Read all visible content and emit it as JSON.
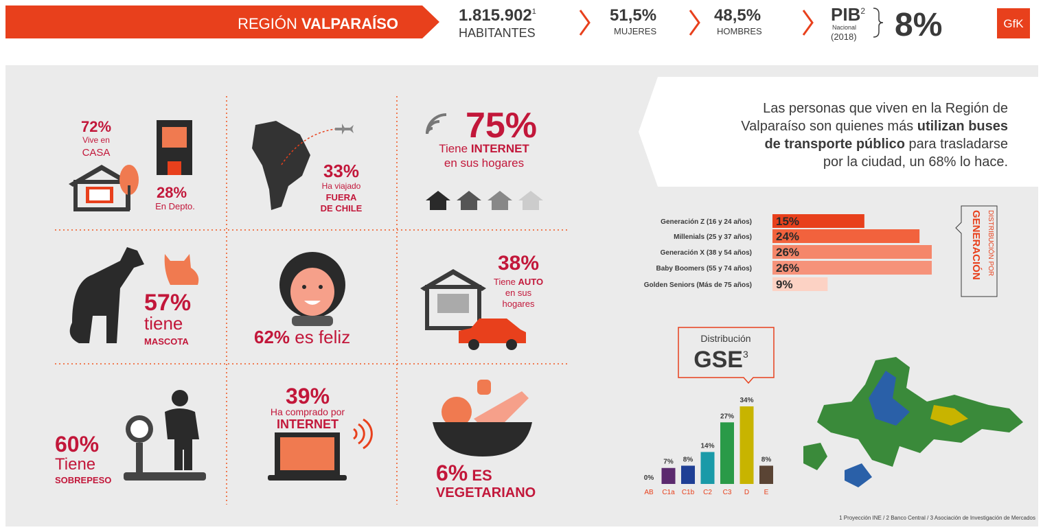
{
  "header": {
    "region_prefix": "REGIÓN ",
    "region_name": "VALPARAÍSO",
    "population": {
      "value": "1.815.902",
      "note": "1",
      "label": "HABITANTES"
    },
    "women": {
      "value": "51,5%",
      "label": "MUJERES"
    },
    "men": {
      "value": "48,5%",
      "label": "HOMBRES"
    },
    "gdp": {
      "label": "PIB",
      "note": "2",
      "sub1": "Nacional",
      "sub2": "(2018)",
      "value": "8%"
    },
    "logo": "GfK"
  },
  "cells": [
    {
      "pct": "72%",
      "line1": "Vive en",
      "line2": "CASA",
      "pct2": "28%",
      "line3": "En Depto."
    },
    {
      "pct": "33%",
      "line1": "Ha viajado",
      "line2": "FUERA",
      "line3": "DE CHILE"
    },
    {
      "pct": "75%",
      "line1a": "Tiene ",
      "line1b": "INTERNET",
      "line2": "en sus hogares"
    },
    {
      "pct": "57%",
      "line1": "tiene",
      "line2": "MASCOTA"
    },
    {
      "pct": "62%",
      "line1": " es feliz"
    },
    {
      "pct": "38%",
      "line1a": "Tiene ",
      "line1b": "AUTO",
      "line2": "en sus",
      "line3": "hogares"
    },
    {
      "pct": "60%",
      "line1": "Tiene",
      "line2": "SOBREPESO"
    },
    {
      "pct": "39%",
      "line1": "Ha comprado por",
      "line2": "INTERNET"
    },
    {
      "pct": "6%",
      "line1": " ES",
      "line2": "VEGETARIANO"
    }
  ],
  "quote": {
    "parts": [
      "Las personas que viven en la Región de",
      "Valparaíso son quienes más ",
      "utilizan buses",
      "de transporte público",
      " para trasladarse",
      "por la ciudad, un 68% lo hace."
    ]
  },
  "chart_data": [
    {
      "type": "bar",
      "orientation": "horizontal",
      "title": "DISTRIBUCIÓN POR",
      "subtitle": "GENERACIÓN",
      "categories": [
        "Generación Z (16 y 24 años)",
        "Millenials (25 y 37 años)",
        "Generación X (38 y 54 años)",
        "Baby Boomers (55 y 74 años)",
        "Golden Seniors (Más de 75 años)"
      ],
      "values": [
        15,
        24,
        26,
        26,
        9
      ],
      "value_labels": [
        "15%",
        "24%",
        "26%",
        "26%",
        "9%"
      ],
      "colors": [
        "#e8401c",
        "#f2623d",
        "#f5866a",
        "#f6927a",
        "#fcd2c4"
      ]
    },
    {
      "type": "bar",
      "orientation": "vertical",
      "title": "Distribución",
      "subtitle": "GSE",
      "title_note": "3",
      "categories": [
        "AB",
        "C1a",
        "C1b",
        "C2",
        "C3",
        "D",
        "E"
      ],
      "values": [
        0,
        7,
        8,
        14,
        27,
        34,
        8
      ],
      "value_labels": [
        "0%",
        "7%",
        "8%",
        "14%",
        "27%",
        "34%",
        "8%"
      ],
      "colors": [
        "#e8401c",
        "#5b2a6e",
        "#1f3f95",
        "#1a9aa8",
        "#2a9a48",
        "#c8b400",
        "#5a4434"
      ]
    }
  ],
  "footnote": "1 Proyección INE / 2 Banco Central / 3 Asociación de Investigación de Mercados"
}
